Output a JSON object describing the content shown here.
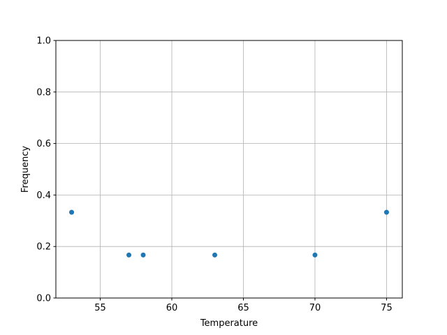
{
  "chart_data": {
    "type": "scatter",
    "title": "",
    "xlabel": "Temperature",
    "ylabel": "Frequency",
    "xlim": [
      51.9,
      76.1
    ],
    "ylim": [
      0.0,
      1.0
    ],
    "xticks": [
      55,
      60,
      65,
      70,
      75
    ],
    "xtick_labels": [
      "55",
      "60",
      "65",
      "70",
      "75"
    ],
    "yticks": [
      0.0,
      0.2,
      0.4,
      0.6,
      0.8,
      1.0
    ],
    "ytick_labels": [
      "0.0",
      "0.2",
      "0.4",
      "0.6",
      "0.8",
      "1.0"
    ],
    "grid": true,
    "marker_color": "#1f77b4",
    "points": [
      {
        "x": 53,
        "y": 0.333
      },
      {
        "x": 57,
        "y": 0.167
      },
      {
        "x": 58,
        "y": 0.167
      },
      {
        "x": 63,
        "y": 0.167
      },
      {
        "x": 70,
        "y": 0.167
      },
      {
        "x": 75,
        "y": 0.333
      }
    ]
  }
}
